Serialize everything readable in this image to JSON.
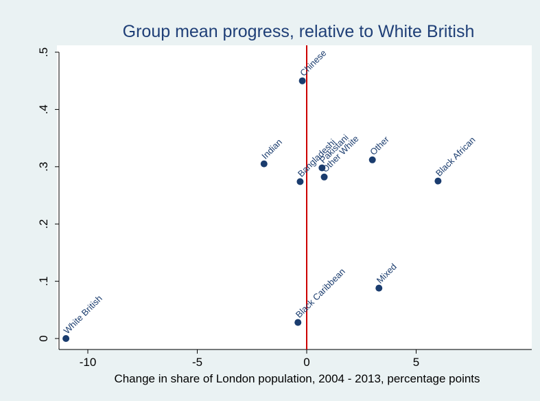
{
  "chart_data": {
    "type": "scatter",
    "title": "Group mean progress, relative to White British",
    "xlabel": "Change in share of London population, 2004 - 2013, percentage points",
    "ylabel": "",
    "xlim": [
      -11.5,
      10.3
    ],
    "ylim": [
      -0.025,
      0.5
    ],
    "x_ticks": [
      -10,
      -5,
      0,
      5
    ],
    "x_tick_labels": [
      "-10",
      "-5",
      "0",
      "5"
    ],
    "y_ticks": [
      0,
      0.1,
      0.2,
      0.3,
      0.4,
      0.5
    ],
    "y_tick_labels": [
      "0",
      ".1",
      ".2",
      ".3",
      ".4",
      ".5"
    ],
    "reference_line": {
      "x": 0,
      "color": "#cc0000"
    },
    "grid": false,
    "marker_color": "#1a3c6e",
    "points": [
      {
        "label": "White British",
        "x": -11.0,
        "y": 0.0
      },
      {
        "label": "Black Caribbean",
        "x": -0.4,
        "y": 0.028
      },
      {
        "label": "Mixed",
        "x": 3.3,
        "y": 0.088
      },
      {
        "label": "Chinese",
        "x": -0.2,
        "y": 0.45
      },
      {
        "label": "Indian",
        "x": -1.95,
        "y": 0.305
      },
      {
        "label": "Bangladeshi",
        "x": -0.3,
        "y": 0.274
      },
      {
        "label": "Pakistani",
        "x": 0.7,
        "y": 0.298
      },
      {
        "label": "Other White",
        "x": 0.8,
        "y": 0.282
      },
      {
        "label": "Other",
        "x": 3.0,
        "y": 0.312
      },
      {
        "label": "Black African",
        "x": 6.0,
        "y": 0.275
      }
    ]
  }
}
